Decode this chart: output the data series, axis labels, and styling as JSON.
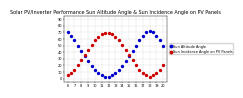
{
  "title": "Solar PV/Inverter Performance Sun Altitude Angle & Sun Incidence Angle on PV Panels",
  "blue_label": "Sun Altitude Angle",
  "red_label": "Sun Incidence Angle on PV Panels",
  "blue_color": "#0000cc",
  "red_color": "#cc0000",
  "background_color": "#ffffff",
  "grid_color": "#888888",
  "ylim": [
    -5,
    95
  ],
  "xlim": [
    5.5,
    20.5
  ],
  "blue_x": [
    6.0,
    6.5,
    7.0,
    7.5,
    8.0,
    8.5,
    9.0,
    9.5,
    10.0,
    10.5,
    11.0,
    11.5,
    12.0,
    12.5,
    13.0,
    13.5,
    14.0,
    14.5,
    15.0,
    15.5,
    16.0,
    16.5,
    17.0,
    17.5,
    18.0,
    18.5,
    19.0,
    19.5,
    20.0
  ],
  "blue_y": [
    70,
    65,
    58,
    50,
    42,
    34,
    26,
    19,
    13,
    8,
    5,
    3,
    3,
    5,
    8,
    13,
    19,
    26,
    34,
    42,
    50,
    58,
    65,
    70,
    72,
    70,
    65,
    58,
    50
  ],
  "red_x": [
    6.0,
    6.5,
    7.0,
    7.5,
    8.0,
    8.5,
    9.0,
    9.5,
    10.0,
    10.5,
    11.0,
    11.5,
    12.0,
    12.5,
    13.0,
    13.5,
    14.0,
    14.5,
    15.0,
    15.5,
    16.0,
    16.5,
    17.0,
    17.5,
    18.0,
    18.5,
    19.0,
    19.5,
    20.0
  ],
  "red_y": [
    5,
    8,
    13,
    20,
    28,
    36,
    44,
    51,
    58,
    63,
    67,
    69,
    69,
    67,
    63,
    58,
    51,
    44,
    36,
    28,
    20,
    13,
    8,
    5,
    3,
    5,
    8,
    13,
    20
  ],
  "xtick_labels": [
    "6",
    "7",
    "8",
    "9",
    "10",
    "11",
    "12",
    "13",
    "14",
    "15",
    "16",
    "17",
    "18",
    "19",
    "20"
  ],
  "xtick_positions": [
    6,
    7,
    8,
    9,
    10,
    11,
    12,
    13,
    14,
    15,
    16,
    17,
    18,
    19,
    20
  ],
  "ytick_labels": [
    "0",
    "10",
    "20",
    "30",
    "40",
    "50",
    "60",
    "70",
    "80",
    "90"
  ],
  "ytick_positions": [
    0,
    10,
    20,
    30,
    40,
    50,
    60,
    70,
    80,
    90
  ],
  "title_fontsize": 3.5,
  "tick_fontsize": 2.5,
  "legend_fontsize": 2.5,
  "marker_size": 2.0
}
